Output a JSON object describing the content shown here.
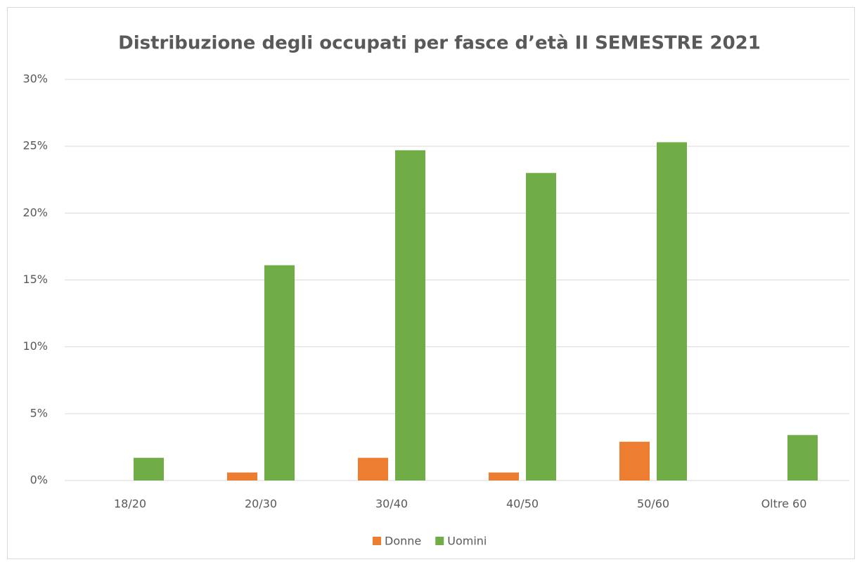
{
  "chart_data": {
    "type": "bar",
    "title": "Distribuzione degli occupati per fasce d’età II SEMESTRE  2021",
    "categories": [
      "18/20",
      "20/30",
      "30/40",
      "40/50",
      "50/60",
      "Oltre 60"
    ],
    "series": [
      {
        "name": "Donne",
        "color": "#ed7d31",
        "values": [
          0,
          0.6,
          1.7,
          0.6,
          2.9,
          0
        ]
      },
      {
        "name": "Uomini",
        "color": "#70ad47",
        "values": [
          1.7,
          16.1,
          24.7,
          23.0,
          25.3,
          3.4
        ]
      }
    ],
    "ylim": [
      0,
      30
    ],
    "yticks": [
      {
        "value": 0,
        "label": "0%"
      },
      {
        "value": 5,
        "label": "5%"
      },
      {
        "value": 10,
        "label": "10%"
      },
      {
        "value": 15,
        "label": "15%"
      },
      {
        "value": 20,
        "label": "20%"
      },
      {
        "value": 25,
        "label": "25%"
      },
      {
        "value": 30,
        "label": "30%"
      }
    ],
    "grid": true,
    "legend": "bottom"
  }
}
